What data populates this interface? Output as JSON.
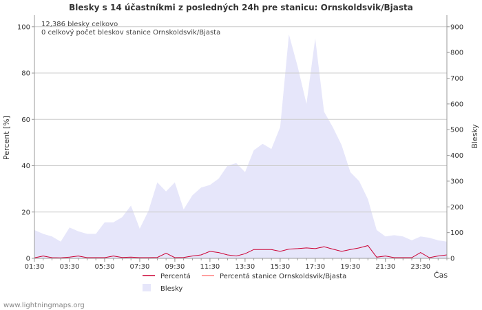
{
  "chart_data": {
    "type": "area",
    "title": "Blesky s 14 účastníkmi z posledných 24h pre stanicu: Ornskoldsvik/Bjasta",
    "xlabel": "Čas",
    "ylabel_left": "Percent   [%]",
    "ylabel_right": "Blesky",
    "ylim_left": [
      0,
      105
    ],
    "ylim_right": [
      0,
      945
    ],
    "yticks_left": [
      0,
      20,
      40,
      60,
      80,
      100
    ],
    "yticks_right": [
      0,
      100,
      200,
      300,
      400,
      500,
      600,
      700,
      800,
      900
    ],
    "x_tick_labels": [
      "01:30",
      "03:30",
      "05:30",
      "07:30",
      "09:30",
      "11:30",
      "13:30",
      "15:30",
      "17:30",
      "19:30",
      "21:30",
      "23:30"
    ],
    "annotations": [
      "12,386 blesky celkovo",
      "0 celkový počet bleskov stanice Ornskoldsvik/Bjasta"
    ],
    "x_hours": [
      1.5,
      2.0,
      2.5,
      3.0,
      3.5,
      4.0,
      4.5,
      5.0,
      5.5,
      6.0,
      6.5,
      7.0,
      7.5,
      8.0,
      8.5,
      9.0,
      9.5,
      10.0,
      10.5,
      11.0,
      11.5,
      12.0,
      12.5,
      13.0,
      13.5,
      14.0,
      14.5,
      15.0,
      15.5,
      16.0,
      16.5,
      17.0,
      17.5,
      18.0,
      18.5,
      19.0,
      19.5,
      20.0,
      20.5,
      21.0,
      21.5,
      22.0,
      22.5,
      23.0,
      23.5,
      24.0,
      24.5,
      25.0
    ],
    "series": [
      {
        "name": "Blesky",
        "axis": "right",
        "color": "#e6e6fa",
        "values": [
          110,
          95,
          85,
          65,
          120,
          105,
          95,
          95,
          140,
          140,
          160,
          205,
          115,
          185,
          295,
          260,
          295,
          190,
          245,
          275,
          285,
          310,
          360,
          370,
          335,
          420,
          445,
          425,
          510,
          870,
          745,
          600,
          855,
          570,
          510,
          440,
          335,
          300,
          230,
          110,
          85,
          90,
          85,
          70,
          85,
          80,
          70,
          65
        ]
      },
      {
        "name": "Percentá",
        "axis": "left",
        "color": "#cc0033",
        "values": [
          0.2,
          1.0,
          0.3,
          0.2,
          0.5,
          1.0,
          0.3,
          0.3,
          0.3,
          1.0,
          0.4,
          0.5,
          0.3,
          0.3,
          0.4,
          2.2,
          0.3,
          0.4,
          1.0,
          1.5,
          3.0,
          2.5,
          1.5,
          1.0,
          2.0,
          3.8,
          3.8,
          3.8,
          3.0,
          4.0,
          4.2,
          4.5,
          4.2,
          5.0,
          4.0,
          3.0,
          3.8,
          4.5,
          5.5,
          0.5,
          1.0,
          0.3,
          0.3,
          0.3,
          2.5,
          0.3,
          1.0,
          1.5
        ]
      },
      {
        "name": "Percentá stanice Ornskoldsvik/Bjasta",
        "axis": "left",
        "color": "#ff8080",
        "values": []
      }
    ]
  },
  "legend": {
    "item1": "Percentá",
    "item2": "Percentá stanice Ornskoldsvik/Bjasta",
    "item3": "Blesky"
  },
  "footer": "www.lightningmaps.org",
  "colors": {
    "grid": "#cccccc",
    "area": "#e6e6fa",
    "line_total": "#cc0033",
    "line_station": "#ff8080"
  }
}
